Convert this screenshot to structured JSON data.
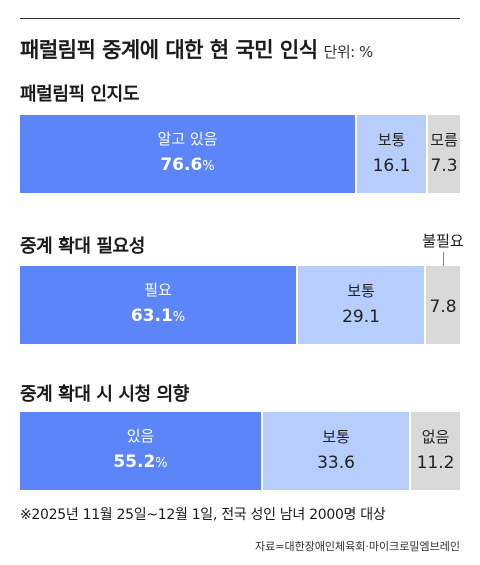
{
  "title": "패럴림픽 중계에 대한 현 국민 인식",
  "unit": "단위: %",
  "colors": {
    "major": "#5b85f8",
    "mid": "#b7cdfb",
    "minor": "#d9d9d9"
  },
  "chart_data": [
    {
      "type": "bar",
      "title": "패럴림픽 인지도",
      "segments": [
        {
          "label": "알고 있음",
          "value": 76.6,
          "display": "76.6",
          "suffix": "%"
        },
        {
          "label": "보통",
          "value": 16.1,
          "display": "16.1",
          "suffix": ""
        },
        {
          "label": "모름",
          "value": 7.3,
          "display": "7.3",
          "suffix": ""
        }
      ]
    },
    {
      "type": "bar",
      "title": "중계 확대 필요성",
      "segments": [
        {
          "label": "필요",
          "value": 63.1,
          "display": "63.1",
          "suffix": "%"
        },
        {
          "label": "보통",
          "value": 29.1,
          "display": "29.1",
          "suffix": ""
        },
        {
          "label": "불필요",
          "value": 7.8,
          "display": "7.8",
          "suffix": ""
        }
      ]
    },
    {
      "type": "bar",
      "title": "중계 확대 시 시청 의향",
      "segments": [
        {
          "label": "있음",
          "value": 55.2,
          "display": "55.2",
          "suffix": "%"
        },
        {
          "label": "보통",
          "value": 33.6,
          "display": "33.6",
          "suffix": ""
        },
        {
          "label": "없음",
          "value": 11.2,
          "display": "11.2",
          "suffix": ""
        }
      ]
    }
  ],
  "footnote": "※2025년 11월 25일~12월 1일, 전국 성인 남녀 2000명 대상",
  "source": "자료=대한장애인체육회·마이크로밀엠브레인"
}
